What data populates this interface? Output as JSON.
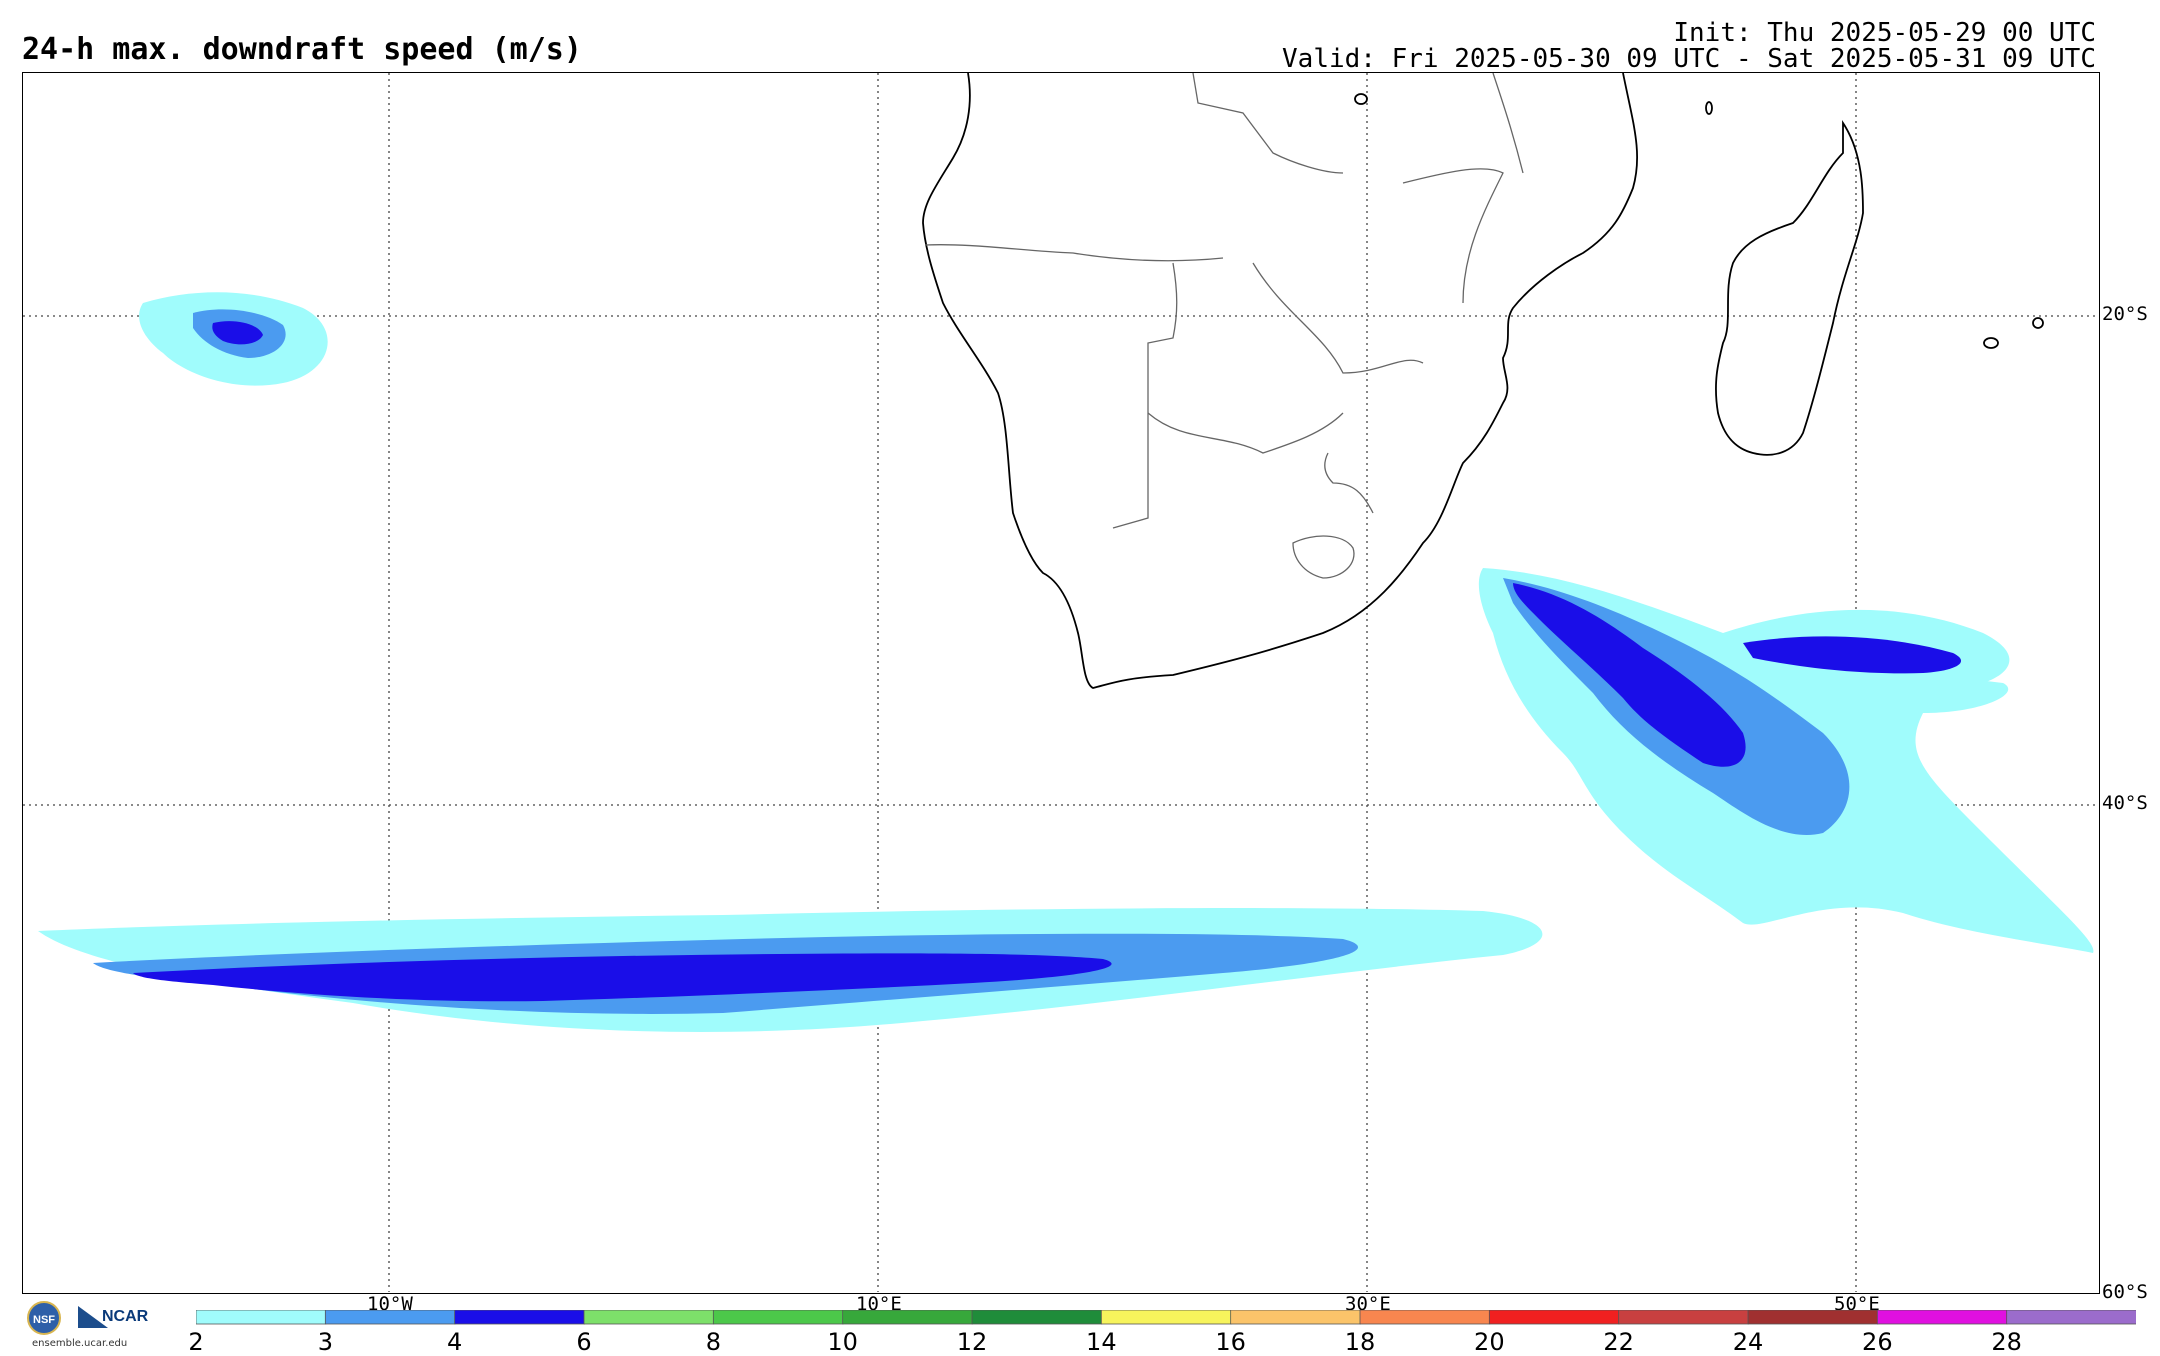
{
  "header": {
    "title": "24-h max. downdraft speed (m/s)",
    "init": "Init: Thu 2025-05-29 00 UTC",
    "valid": "Valid: Fri 2025-05-30 09 UTC - Sat 2025-05-31 09 UTC"
  },
  "map": {
    "lon_labels": [
      "10°W",
      "10°E",
      "30°E",
      "50°E"
    ],
    "lat_labels": [
      "20°S",
      "40°S",
      "60°S"
    ]
  },
  "colorbar": {
    "ticks": [
      "2",
      "3",
      "4",
      "6",
      "8",
      "10",
      "12",
      "14",
      "16",
      "18",
      "20",
      "22",
      "24",
      "26",
      "28"
    ],
    "colors": [
      "#a0fcfc",
      "#4b9bf0",
      "#1a0ee8",
      "#7de06a",
      "#4cc84a",
      "#37a83b",
      "#1f8c3a",
      "#f7f45c",
      "#fbc46a",
      "#f8864f",
      "#f02020",
      "#c84040",
      "#a03030",
      "#e010e0",
      "#9b6ccc"
    ]
  },
  "logo": {
    "org": "NCAR",
    "url": "ensemble.ucar.edu"
  }
}
